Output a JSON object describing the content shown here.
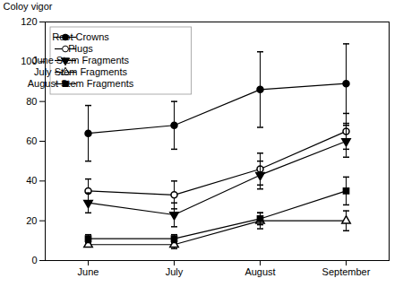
{
  "chart_data": {
    "type": "line",
    "categories": [
      "June",
      "July",
      "August",
      "September"
    ],
    "ylabel": "Coloy vigor",
    "ylim": [
      0,
      120
    ],
    "yticks": [
      0,
      20,
      40,
      60,
      80,
      100,
      120
    ],
    "color": "black",
    "legend": "upper left",
    "grid": false,
    "series": [
      {
        "name": "Root Crowns",
        "marker": "circle",
        "values": [
          64,
          68,
          86,
          89
        ],
        "errors": [
          14,
          12,
          19,
          20
        ]
      },
      {
        "name": "Plugs",
        "marker": "circle-open",
        "values": [
          35,
          33,
          46,
          65
        ],
        "errors": [
          6,
          7,
          8,
          9
        ]
      },
      {
        "name": "June Stem Fragments",
        "marker": "triangle-down",
        "values": [
          29,
          23,
          43,
          60
        ],
        "errors": [
          5,
          6,
          7,
          8
        ]
      },
      {
        "name": "July Stem Fragments",
        "marker": "triangle-up-open",
        "values": [
          8,
          8,
          20,
          20
        ],
        "errors": [
          1,
          2,
          4,
          5
        ]
      },
      {
        "name": "August Stem Fragments",
        "marker": "square",
        "values": [
          11,
          11,
          21,
          35
        ],
        "errors": [
          2,
          2,
          3,
          7
        ]
      }
    ]
  }
}
